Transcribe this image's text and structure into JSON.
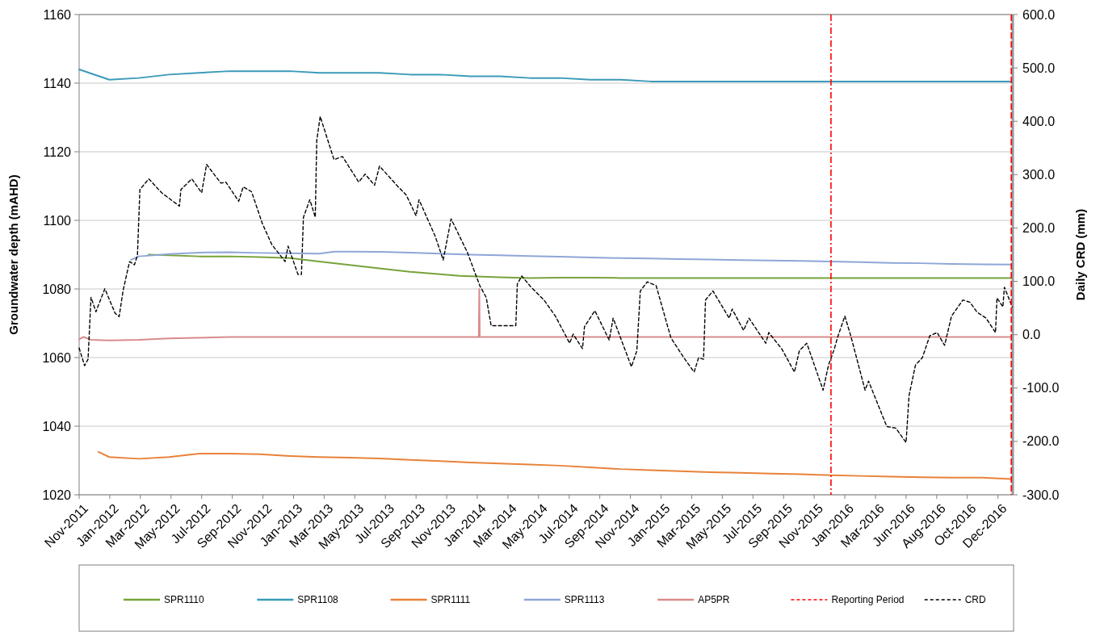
{
  "chart_data": {
    "type": "line",
    "ylabel": "Groundwater depth (mAHD)",
    "y2label": "Daily CRD (mm)",
    "x": [
      "2011-11-01",
      "2012-01-01",
      "2012-03-01",
      "2012-05-01",
      "2012-07-01",
      "2012-09-01",
      "2012-11-01",
      "2013-01-01",
      "2013-03-01",
      "2013-05-01",
      "2013-07-01",
      "2013-09-01",
      "2013-11-01",
      "2014-01-01",
      "2014-03-01",
      "2014-05-01",
      "2014-07-01",
      "2014-09-01",
      "2014-11-01",
      "2015-01-01",
      "2015-03-01",
      "2015-05-01",
      "2015-07-01",
      "2015-09-01",
      "2015-11-01",
      "2016-01-01",
      "2016-03-01",
      "2016-05-01",
      "2016-07-01",
      "2016-09-01",
      "2016-11-01",
      "2016-12-31"
    ],
    "xlim": [
      "2011-11-01",
      "2017-01-03"
    ],
    "xticks": [
      {
        "value": "2011-11-01",
        "label": "Nov-2011"
      },
      {
        "value": "2012-01-02",
        "label": "Jan-2012"
      },
      {
        "value": "2012-03-04",
        "label": "Mar-2012"
      },
      {
        "value": "2012-05-05",
        "label": "May-2012"
      },
      {
        "value": "2012-07-06",
        "label": "Jul-2012"
      },
      {
        "value": "2012-09-06",
        "label": "Sep-2012"
      },
      {
        "value": "2012-11-07",
        "label": "Nov-2012"
      },
      {
        "value": "2013-01-08",
        "label": "Jan-2013"
      },
      {
        "value": "2013-03-11",
        "label": "Mar-2013"
      },
      {
        "value": "2013-05-12",
        "label": "May-2013"
      },
      {
        "value": "2013-07-13",
        "label": "Jul-2013"
      },
      {
        "value": "2013-09-13",
        "label": "Sep-2013"
      },
      {
        "value": "2013-11-14",
        "label": "Nov-2013"
      },
      {
        "value": "2014-01-15",
        "label": "Jan-2014"
      },
      {
        "value": "2014-03-18",
        "label": "Mar-2014"
      },
      {
        "value": "2014-05-19",
        "label": "May-2014"
      },
      {
        "value": "2014-07-20",
        "label": "Jul-2014"
      },
      {
        "value": "2014-09-20",
        "label": "Sep-2014"
      },
      {
        "value": "2014-11-21",
        "label": "Nov-2014"
      },
      {
        "value": "2015-01-22",
        "label": "Jan-2015"
      },
      {
        "value": "2015-03-25",
        "label": "Mar-2015"
      },
      {
        "value": "2015-05-26",
        "label": "May-2015"
      },
      {
        "value": "2015-07-27",
        "label": "Jul-2015"
      },
      {
        "value": "2015-09-27",
        "label": "Sep-2015"
      },
      {
        "value": "2015-11-28",
        "label": "Nov-2015"
      },
      {
        "value": "2016-01-29",
        "label": "Jan-2016"
      },
      {
        "value": "2016-03-31",
        "label": "Mar-2016"
      },
      {
        "value": "2016-06-01",
        "label": "Jun-2016"
      },
      {
        "value": "2016-08-02",
        "label": "Aug-2016"
      },
      {
        "value": "2016-10-03",
        "label": "Oct-2016"
      },
      {
        "value": "2016-12-04",
        "label": "Dec-2016"
      }
    ],
    "ylim": [
      1020,
      1160
    ],
    "yticks": [
      1020,
      1040,
      1060,
      1080,
      1100,
      1120,
      1140,
      1160
    ],
    "y2lim": [
      -300,
      600
    ],
    "y2ticks": [
      {
        "value": -300,
        "label": "-300.0"
      },
      {
        "value": -200,
        "label": "-200.0"
      },
      {
        "value": -100,
        "label": "-100.0"
      },
      {
        "value": 0,
        "label": "0.0"
      },
      {
        "value": 100,
        "label": "100.0"
      },
      {
        "value": 200,
        "label": "200.0"
      },
      {
        "value": 300,
        "label": "300.0"
      },
      {
        "value": 400,
        "label": "400.0"
      },
      {
        "value": 500,
        "label": "500.0"
      },
      {
        "value": 600,
        "label": "600.0"
      }
    ],
    "grid": "y",
    "legend": "bottom",
    "ref_lines": [
      {
        "axis": "x",
        "value": "2016-01-01",
        "label": "Reporting Period",
        "color": "#ff0000",
        "line_style": "dashed"
      },
      {
        "axis": "x",
        "value": "2016-12-31",
        "color": "#ff0000",
        "line_style": "dashed"
      }
    ],
    "series": [
      {
        "name": "SPR1110",
        "color": "#77a33a",
        "x": [
          "2012-03-20",
          "2012-05-01",
          "2012-07-01",
          "2012-09-01",
          "2012-11-01",
          "2013-01-01",
          "2013-03-01",
          "2013-05-01",
          "2013-07-01",
          "2013-09-01",
          "2013-11-01",
          "2013-12-10",
          "2014-01-01",
          "2014-03-01",
          "2014-05-01",
          "2014-07-01",
          "2014-09-01",
          "2014-11-01",
          "2015-01-01",
          "2015-07-01",
          "2016-01-01",
          "2016-07-01",
          "2016-12-31"
        ],
        "values": [
          1090,
          1089.8,
          1089.5,
          1089.5,
          1089.3,
          1089,
          1088,
          1087,
          1086,
          1085,
          1084.3,
          1083.8,
          1083.7,
          1083.4,
          1083.2,
          1083.3,
          1083.3,
          1083.2,
          1083.2,
          1083.2,
          1083.2,
          1083.2,
          1083.2
        ]
      },
      {
        "name": "SPR1108",
        "color": "#3a9ab8",
        "values": [
          1144,
          1141,
          1141.5,
          1142.5,
          1143,
          1143.5,
          1143.5,
          1143.5,
          1143,
          1143,
          1143,
          1142.5,
          1142.5,
          1142,
          1142,
          1141.5,
          1141.5,
          1141,
          1141,
          1140.5,
          1140.5,
          1140.5,
          1140.5,
          1140.5,
          1140.5,
          1140.5,
          1140.5,
          1140.5,
          1140.5,
          1140.5,
          1140.5,
          1140.5
        ]
      },
      {
        "name": "SPR1111",
        "color": "#e8823a",
        "x": [
          "2011-12-10",
          "2012-01-01",
          "2012-03-01",
          "2012-05-01",
          "2012-07-01",
          "2012-09-01",
          "2012-11-01",
          "2013-01-01",
          "2013-03-01",
          "2013-05-01",
          "2013-07-01",
          "2013-09-01",
          "2013-11-01",
          "2014-01-01",
          "2014-03-01",
          "2014-05-01",
          "2014-07-01",
          "2014-09-01",
          "2014-11-01",
          "2015-01-01",
          "2015-03-01",
          "2015-05-01",
          "2015-07-01",
          "2015-09-01",
          "2015-11-01",
          "2016-01-01",
          "2016-03-01",
          "2016-05-01",
          "2016-07-01",
          "2016-09-01",
          "2016-11-01",
          "2016-12-31"
        ],
        "values": [
          1032.5,
          1031,
          1030.5,
          1031,
          1032,
          1032,
          1031.8,
          1031.3,
          1031,
          1030.8,
          1030.6,
          1030.2,
          1029.8,
          1029.4,
          1029.1,
          1028.8,
          1028.5,
          1028,
          1027.5,
          1027.2,
          1026.9,
          1026.6,
          1026.4,
          1026.2,
          1026,
          1025.7,
          1025.5,
          1025.3,
          1025.1,
          1025,
          1025,
          1024.6
        ]
      },
      {
        "name": "SPR1113",
        "color": "#8fa6d8",
        "x": [
          "2012-02-14",
          "2012-03-01",
          "2012-05-01",
          "2012-07-01",
          "2012-09-01",
          "2012-11-01",
          "2013-01-01",
          "2013-03-01",
          "2013-04-01",
          "2013-05-01",
          "2013-07-01",
          "2013-09-01",
          "2013-11-01",
          "2014-01-01",
          "2014-03-01",
          "2014-05-01",
          "2014-07-01",
          "2014-09-01",
          "2014-11-01",
          "2015-01-01",
          "2015-03-01",
          "2015-05-01",
          "2015-07-01",
          "2015-09-01",
          "2015-11-01",
          "2016-01-01",
          "2016-03-01",
          "2016-05-01",
          "2016-07-01",
          "2016-09-01",
          "2016-11-01",
          "2016-12-31"
        ],
        "values": [
          1088.5,
          1089.5,
          1090.2,
          1090.6,
          1090.7,
          1090.5,
          1090.4,
          1090.3,
          1090.9,
          1090.9,
          1090.8,
          1090.6,
          1090.3,
          1090,
          1089.8,
          1089.6,
          1089.4,
          1089.2,
          1089,
          1088.9,
          1088.7,
          1088.6,
          1088.4,
          1088.3,
          1088.2,
          1088,
          1087.8,
          1087.6,
          1087.5,
          1087.3,
          1087.2,
          1087.1
        ]
      },
      {
        "name": "AP5PR",
        "color": "#d98b8b",
        "x": [
          "2011-11-01",
          "2011-11-10",
          "2011-11-25",
          "2012-01-01",
          "2012-03-01",
          "2012-05-01",
          "2012-09-01",
          "2013-01-01",
          "2014-01-18",
          "2014-01-19",
          "2014-01-20",
          "2015-01-01",
          "2016-01-01",
          "2016-12-31"
        ],
        "values": [
          1065.3,
          1066,
          1065.2,
          1065,
          1065.2,
          1065.6,
          1066,
          1066,
          1066,
          1080,
          1066,
          1066,
          1066,
          1066
        ]
      },
      {
        "name": "CRD",
        "color": "#000000",
        "axis": "y2",
        "line_style": "dashed",
        "x": [
          "2011-11-01",
          "2011-11-12",
          "2011-11-19",
          "2011-11-25",
          "2011-12-05",
          "2011-12-23",
          "2012-01-13",
          "2012-01-21",
          "2012-01-29",
          "2012-02-11",
          "2012-02-21",
          "2012-02-27",
          "2012-03-03",
          "2012-03-21",
          "2012-04-16",
          "2012-05-22",
          "2012-05-25",
          "2012-06-16",
          "2012-07-06",
          "2012-07-16",
          "2012-08-14",
          "2012-08-24",
          "2012-09-19",
          "2012-09-28",
          "2012-10-15",
          "2012-11-06",
          "2012-11-25",
          "2012-12-22",
          "2012-12-28",
          "2013-01-17",
          "2013-01-24",
          "2013-01-28",
          "2013-02-10",
          "2013-02-21",
          "2013-02-24",
          "2013-03-03",
          "2013-03-31",
          "2013-04-17",
          "2013-05-20",
          "2013-06-02",
          "2013-06-21",
          "2013-07-01",
          "2013-08-05",
          "2013-08-24",
          "2013-09-13",
          "2013-09-19",
          "2013-10-22",
          "2013-11-07",
          "2013-11-23",
          "2013-12-26",
          "2014-01-20",
          "2014-02-02",
          "2014-02-12",
          "2014-04-03",
          "2014-04-06",
          "2014-04-15",
          "2014-05-04",
          "2014-05-30",
          "2014-06-22",
          "2014-07-21",
          "2014-07-28",
          "2014-08-16",
          "2014-08-20",
          "2014-09-10",
          "2014-10-09",
          "2014-10-17",
          "2014-11-23",
          "2014-12-04",
          "2014-12-11",
          "2014-12-25",
          "2015-01-12",
          "2015-02-11",
          "2015-03-09",
          "2015-03-30",
          "2015-04-08",
          "2015-04-18",
          "2015-04-22",
          "2015-05-07",
          "2015-06-09",
          "2015-06-15",
          "2015-07-08",
          "2015-07-19",
          "2015-08-22",
          "2015-08-28",
          "2015-09-23",
          "2015-10-19",
          "2015-10-29",
          "2015-11-13",
          "2015-12-16",
          "2015-12-27",
          "2016-01-08",
          "2016-01-14",
          "2016-01-29",
          "2016-02-10",
          "2016-03-10",
          "2016-03-17",
          "2016-04-23",
          "2016-05-11",
          "2016-06-01",
          "2016-06-07",
          "2016-06-20",
          "2016-07-04",
          "2016-07-19",
          "2016-08-03",
          "2016-08-18",
          "2016-09-01",
          "2016-09-24",
          "2016-10-08",
          "2016-10-23",
          "2016-11-10",
          "2016-11-29",
          "2016-12-02",
          "2016-12-14",
          "2016-12-17",
          "2017-01-02"
        ],
        "values": [
          -25,
          -58,
          -46,
          70,
          43,
          86,
          40,
          34,
          83,
          137,
          131,
          149,
          272,
          292,
          266,
          241,
          272,
          292,
          266,
          319,
          284,
          286,
          250,
          277,
          268,
          208,
          169,
          137,
          166,
          113,
          113,
          220,
          253,
          220,
          364,
          409,
          328,
          334,
          286,
          301,
          280,
          316,
          280,
          262,
          223,
          253,
          184,
          140,
          217,
          154,
          92,
          70,
          17,
          17,
          95,
          110,
          89,
          65,
          35,
          -16,
          1,
          -26,
          15,
          45,
          -10,
          31,
          -60,
          -30,
          82,
          99,
          92,
          -6,
          -43,
          -70,
          -43,
          -46,
          65,
          82,
          31,
          48,
          8,
          31,
          -16,
          4,
          -26,
          -70,
          -30,
          -16,
          -104,
          -57,
          -26,
          -6,
          35,
          -2,
          -104,
          -87,
          -172,
          -175,
          -202,
          -114,
          -57,
          -43,
          -2,
          4,
          -20,
          35,
          65,
          61,
          42,
          31,
          4,
          69,
          52,
          89,
          52
        ]
      }
    ]
  }
}
